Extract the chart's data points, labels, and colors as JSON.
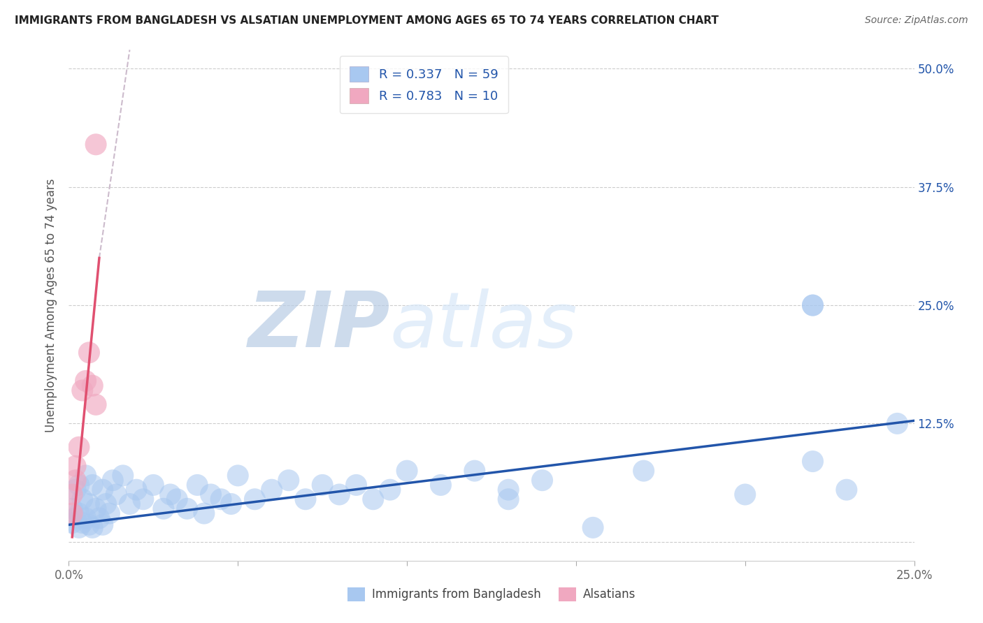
{
  "title": "IMMIGRANTS FROM BANGLADESH VS ALSATIAN UNEMPLOYMENT AMONG AGES 65 TO 74 YEARS CORRELATION CHART",
  "source": "Source: ZipAtlas.com",
  "ylabel": "Unemployment Among Ages 65 to 74 years",
  "xlim": [
    0.0,
    0.25
  ],
  "ylim": [
    -0.02,
    0.52
  ],
  "xticks": [
    0.0,
    0.05,
    0.1,
    0.15,
    0.2,
    0.25
  ],
  "xtick_labels_show": [
    "0.0%",
    "",
    "",
    "",
    "",
    "25.0%"
  ],
  "yticks": [
    0.0,
    0.125,
    0.25,
    0.375,
    0.5
  ],
  "ytick_labels": [
    "",
    "12.5%",
    "25.0%",
    "37.5%",
    "50.0%"
  ],
  "blue_color": "#a8c8f0",
  "pink_color": "#f0a8c0",
  "blue_line_color": "#2255aa",
  "pink_line_color": "#e05070",
  "dashed_line_color": "#ccbbcc",
  "watermark_zip": "ZIP",
  "watermark_atlas": "atlas",
  "watermark_color": "#c8d8f0",
  "legend_text1": "R = 0.337   N = 59",
  "legend_text2": "R = 0.783   N = 10",
  "legend_label1": "Immigrants from Bangladesh",
  "legend_label2": "Alsatians",
  "blue_x": [
    0.001,
    0.001,
    0.002,
    0.002,
    0.003,
    0.003,
    0.003,
    0.004,
    0.004,
    0.005,
    0.005,
    0.006,
    0.006,
    0.007,
    0.007,
    0.008,
    0.009,
    0.01,
    0.01,
    0.011,
    0.012,
    0.013,
    0.014,
    0.016,
    0.018,
    0.02,
    0.022,
    0.025,
    0.028,
    0.03,
    0.032,
    0.035,
    0.038,
    0.04,
    0.042,
    0.045,
    0.048,
    0.05,
    0.055,
    0.06,
    0.065,
    0.07,
    0.075,
    0.08,
    0.085,
    0.09,
    0.095,
    0.1,
    0.11,
    0.12,
    0.13,
    0.14,
    0.155,
    0.17,
    0.13,
    0.2,
    0.22,
    0.23,
    0.245
  ],
  "blue_y": [
    0.02,
    0.035,
    0.025,
    0.055,
    0.015,
    0.03,
    0.06,
    0.02,
    0.045,
    0.025,
    0.07,
    0.018,
    0.04,
    0.015,
    0.06,
    0.035,
    0.025,
    0.018,
    0.055,
    0.04,
    0.03,
    0.065,
    0.05,
    0.07,
    0.04,
    0.055,
    0.045,
    0.06,
    0.035,
    0.05,
    0.045,
    0.035,
    0.06,
    0.03,
    0.05,
    0.045,
    0.04,
    0.07,
    0.045,
    0.055,
    0.065,
    0.045,
    0.06,
    0.05,
    0.06,
    0.045,
    0.055,
    0.075,
    0.06,
    0.075,
    0.055,
    0.065,
    0.015,
    0.075,
    0.045,
    0.05,
    0.25,
    0.055,
    0.125
  ],
  "pink_x": [
    0.001,
    0.001,
    0.002,
    0.002,
    0.003,
    0.004,
    0.005,
    0.006,
    0.007,
    0.008
  ],
  "pink_y": [
    0.03,
    0.05,
    0.065,
    0.08,
    0.1,
    0.16,
    0.17,
    0.2,
    0.165,
    0.145
  ],
  "pink_outlier_x": [
    0.008
  ],
  "pink_outlier_y": [
    0.42
  ],
  "blue_line_x0": 0.0,
  "blue_line_y0": 0.018,
  "blue_line_x1": 0.25,
  "blue_line_y1": 0.128,
  "pink_line_x0": 0.001,
  "pink_line_y0": 0.005,
  "pink_line_x1": 0.009,
  "pink_line_y1": 0.3,
  "dashed_line_x0": 0.009,
  "dashed_line_y0": 0.3,
  "dashed_line_x1": 0.018,
  "dashed_line_y1": 0.52
}
